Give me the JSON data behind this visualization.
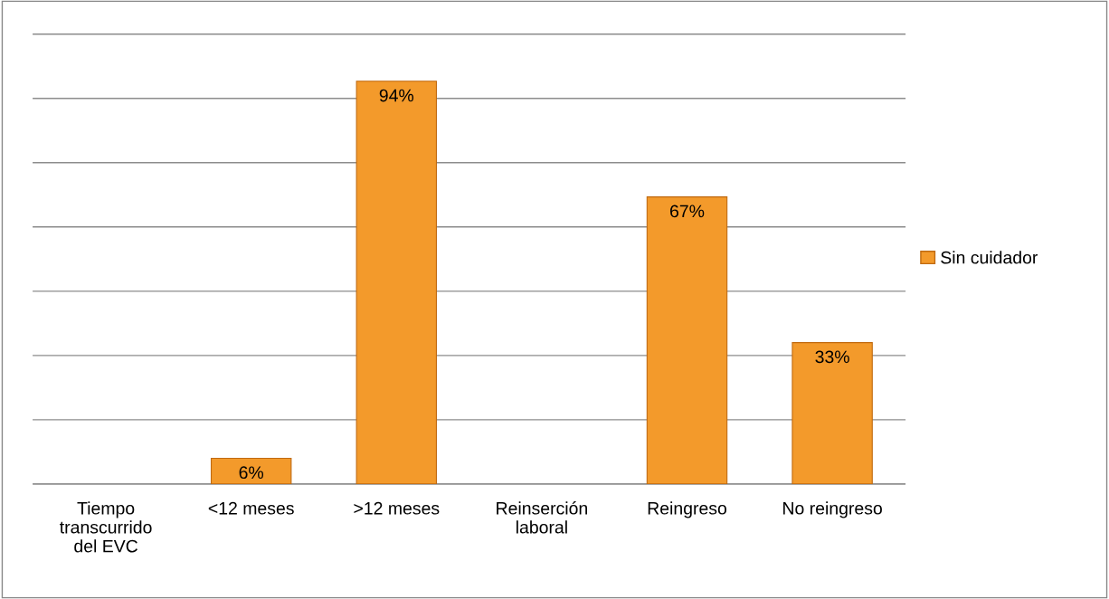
{
  "chart_data": {
    "type": "bar",
    "categories": [
      "Tiempo transcurrido del EVC",
      "<12 meses",
      ">12 meses",
      "Reinserción laboral",
      "Reingreso",
      "No reingreso"
    ],
    "series": [
      {
        "name": "Sin cuidador",
        "color": "#f39a2b",
        "values": [
          null,
          6,
          94,
          null,
          67,
          33
        ],
        "value_labels": [
          null,
          "6%",
          "94%",
          null,
          "67%",
          "33%"
        ]
      }
    ],
    "ylim": [
      0,
      105
    ],
    "yticks": [
      {
        "value": 0,
        "label": null
      },
      {
        "value": 15,
        "label": null
      },
      {
        "value": 30,
        "label": null
      },
      {
        "value": 45,
        "label": null
      },
      {
        "value": 60,
        "label": null
      },
      {
        "value": 75,
        "label": null
      },
      {
        "value": 90,
        "label": null
      },
      {
        "value": 105,
        "label": null
      }
    ],
    "tick_labels": "x",
    "grid": "y",
    "legend": "right"
  }
}
